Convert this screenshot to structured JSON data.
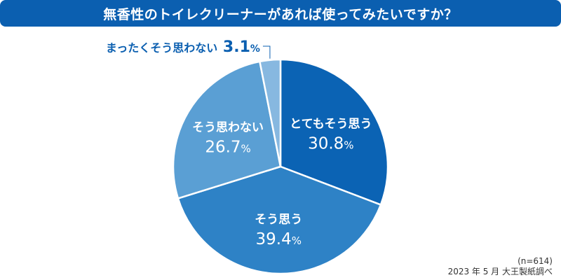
{
  "chart_data": {
    "type": "pie",
    "title": "無香性のトイレクリーナーがあれば使ってみたいですか？",
    "categories": [
      "とてもそう思う",
      "そう思う",
      "そう思わない",
      "まったくそう思わない"
    ],
    "values": [
      30.8,
      39.4,
      26.7,
      3.1
    ],
    "colors": [
      "#0b63b4",
      "#2e82c6",
      "#5a9fd4",
      "#87b8e0"
    ],
    "value_suffix": "%",
    "n_label": "(n=614)",
    "source": "2023 年 5 月 大王製紙調べ"
  }
}
